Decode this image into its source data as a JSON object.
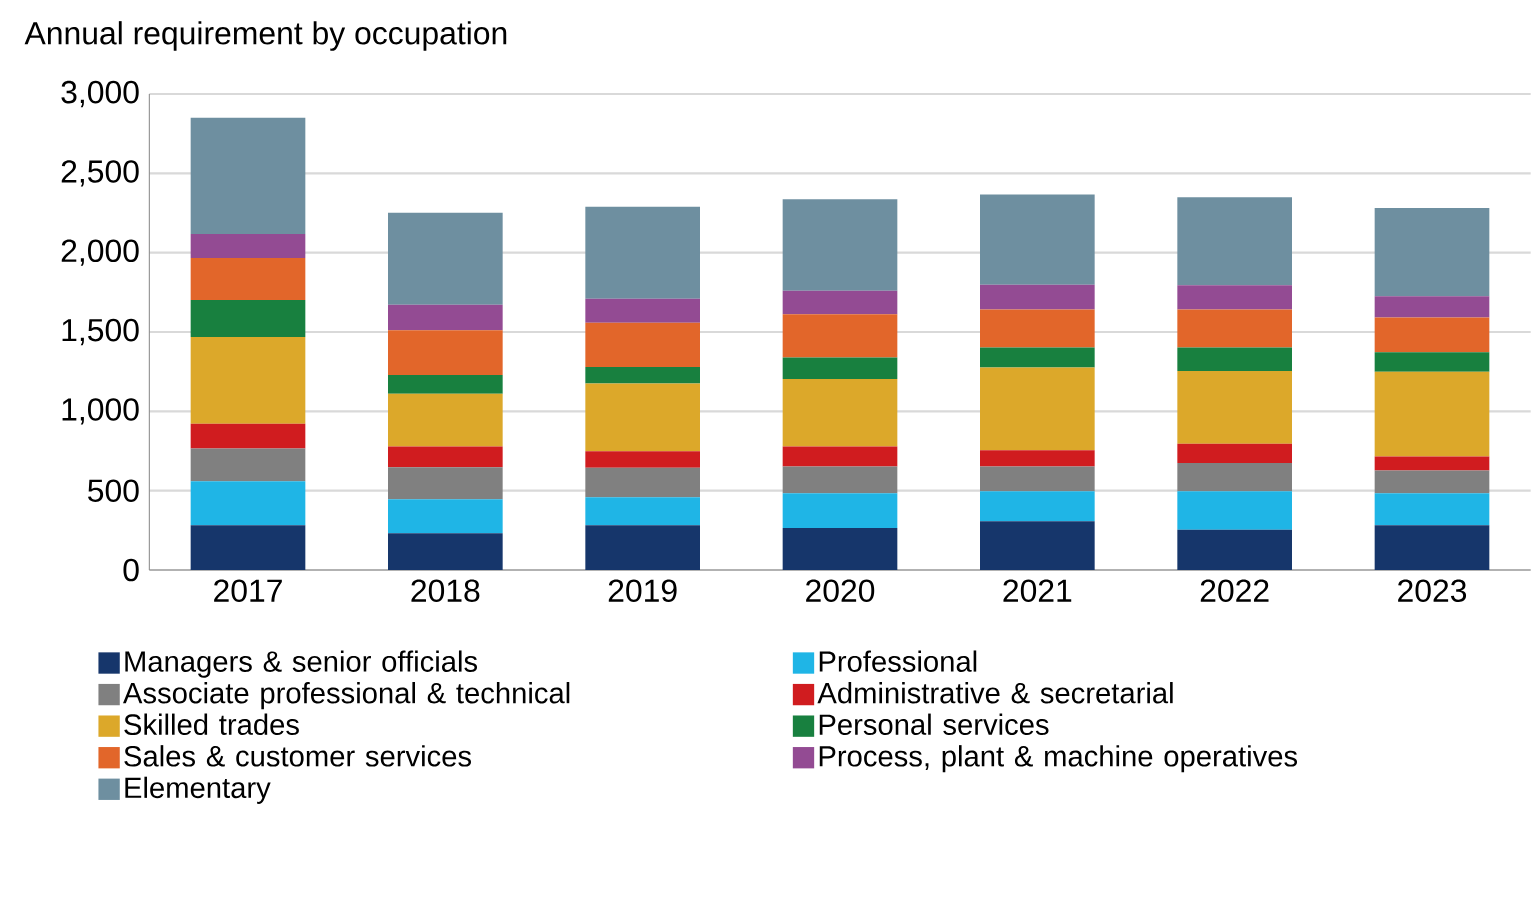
{
  "chart_data": {
    "type": "bar",
    "title": "Annual requirement by occupation",
    "stacked": true,
    "grid": "y",
    "legend": "bottom",
    "categories": [
      "2017",
      "2018",
      "2019",
      "2020",
      "2021",
      "2022",
      "2023"
    ],
    "ylim": [
      0,
      3000
    ],
    "yticks": [
      {
        "value": 0,
        "label": "0"
      },
      {
        "value": 500,
        "label": "500"
      },
      {
        "value": 1000,
        "label": "1,000"
      },
      {
        "value": 1500,
        "label": "1,500"
      },
      {
        "value": 2000,
        "label": "2,000"
      },
      {
        "value": 2500,
        "label": "2,500"
      },
      {
        "value": 3000,
        "label": "3,000"
      }
    ],
    "series": [
      {
        "name": "Managers & senior officials",
        "color": "#16366b",
        "values": [
          282,
          232,
          282,
          265,
          307,
          253,
          282
        ]
      },
      {
        "name": "Professional",
        "color": "#1fb5e6",
        "values": [
          278,
          214,
          177,
          219,
          190,
          244,
          202
        ]
      },
      {
        "name": "Associate professional & technical",
        "color": "#808080",
        "values": [
          206,
          202,
          185,
          169,
          156,
          177,
          143
        ]
      },
      {
        "name": "Administrative & secretarial",
        "color": "#d01c1f",
        "values": [
          156,
          131,
          105,
          126,
          101,
          122,
          89
        ]
      },
      {
        "name": "Skilled trades",
        "color": "#dca82a",
        "values": [
          547,
          332,
          426,
          425,
          522,
          459,
          534
        ]
      },
      {
        "name": "Personal services",
        "color": "#18803f",
        "values": [
          232,
          118,
          105,
          135,
          126,
          147,
          122
        ]
      },
      {
        "name": "Sales & customer services",
        "color": "#e2662a",
        "values": [
          265,
          282,
          278,
          273,
          240,
          240,
          219
        ]
      },
      {
        "name": "Process, plant & machine operatives",
        "color": "#934b93",
        "values": [
          152,
          160,
          151,
          148,
          156,
          152,
          135
        ]
      },
      {
        "name": "Elementary",
        "color": "#6e8fa0",
        "values": [
          732,
          581,
          581,
          577,
          568,
          555,
          556
        ]
      }
    ]
  }
}
